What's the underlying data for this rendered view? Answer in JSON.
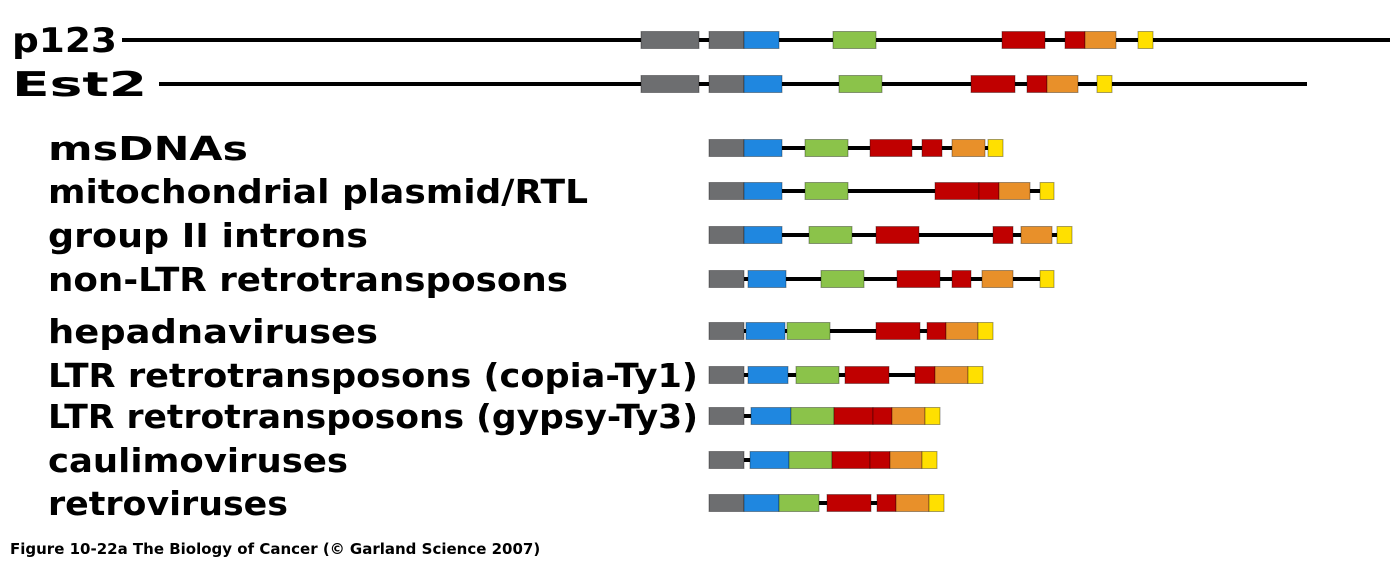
{
  "colors": {
    "backbone": "#000000",
    "gray": "#6d6e70",
    "blue": "#1f87e0",
    "green": "#8bc34a",
    "red": "#c00000",
    "orange": "#e8902a",
    "yellow": "#ffe000"
  },
  "caption": "Figure 10-22a  The Biology of Cancer (© Garland Science 2007)",
  "rows": [
    {
      "label": "p123",
      "line": [
        122,
        1390
      ],
      "domains": [
        {
          "c": "gray",
          "s": 641,
          "e": 699
        },
        {
          "c": "gray",
          "s": 709,
          "e": 744
        },
        {
          "c": "blue",
          "s": 744,
          "e": 779
        },
        {
          "c": "green",
          "s": 833,
          "e": 876
        },
        {
          "c": "red",
          "s": 1002,
          "e": 1045
        },
        {
          "c": "red",
          "s": 1065,
          "e": 1085
        },
        {
          "c": "orange",
          "s": 1085,
          "e": 1116
        },
        {
          "c": "yellow",
          "s": 1138,
          "e": 1153
        }
      ]
    },
    {
      "label": "Est2",
      "line": [
        159,
        1307
      ],
      "domains": [
        {
          "c": "gray",
          "s": 641,
          "e": 699
        },
        {
          "c": "gray",
          "s": 709,
          "e": 744
        },
        {
          "c": "blue",
          "s": 744,
          "e": 782
        },
        {
          "c": "green",
          "s": 839,
          "e": 882
        },
        {
          "c": "red",
          "s": 971,
          "e": 1015
        },
        {
          "c": "red",
          "s": 1027,
          "e": 1047
        },
        {
          "c": "orange",
          "s": 1047,
          "e": 1078
        },
        {
          "c": "yellow",
          "s": 1097,
          "e": 1112
        }
      ]
    },
    {
      "label": "msDNAs",
      "line": [
        709,
        1003
      ],
      "domains": [
        {
          "c": "gray",
          "s": 709,
          "e": 744
        },
        {
          "c": "blue",
          "s": 744,
          "e": 782
        },
        {
          "c": "green",
          "s": 805,
          "e": 848
        },
        {
          "c": "red",
          "s": 870,
          "e": 912
        },
        {
          "c": "red",
          "s": 922,
          "e": 942
        },
        {
          "c": "orange",
          "s": 952,
          "e": 985
        },
        {
          "c": "yellow",
          "s": 988,
          "e": 1003
        }
      ]
    },
    {
      "label": "mitochondrial plasmid/RTL",
      "line": [
        709,
        1054
      ],
      "domains": [
        {
          "c": "gray",
          "s": 709,
          "e": 744
        },
        {
          "c": "blue",
          "s": 744,
          "e": 782
        },
        {
          "c": "green",
          "s": 805,
          "e": 848
        },
        {
          "c": "red",
          "s": 935,
          "e": 979
        },
        {
          "c": "red",
          "s": 979,
          "e": 999
        },
        {
          "c": "orange",
          "s": 999,
          "e": 1030
        },
        {
          "c": "yellow",
          "s": 1040,
          "e": 1054
        }
      ]
    },
    {
      "label": "group II introns",
      "line": [
        709,
        1072
      ],
      "domains": [
        {
          "c": "gray",
          "s": 709,
          "e": 744
        },
        {
          "c": "blue",
          "s": 744,
          "e": 782
        },
        {
          "c": "green",
          "s": 809,
          "e": 852
        },
        {
          "c": "red",
          "s": 876,
          "e": 919
        },
        {
          "c": "red",
          "s": 993,
          "e": 1013
        },
        {
          "c": "orange",
          "s": 1021,
          "e": 1052
        },
        {
          "c": "yellow",
          "s": 1057,
          "e": 1072
        }
      ]
    },
    {
      "label": "non-LTR retrotransposons",
      "line": [
        709,
        1054
      ],
      "domains": [
        {
          "c": "gray",
          "s": 709,
          "e": 744
        },
        {
          "c": "blue",
          "s": 748,
          "e": 786
        },
        {
          "c": "green",
          "s": 821,
          "e": 864
        },
        {
          "c": "red",
          "s": 897,
          "e": 940
        },
        {
          "c": "red",
          "s": 952,
          "e": 971
        },
        {
          "c": "orange",
          "s": 982,
          "e": 1013
        },
        {
          "c": "yellow",
          "s": 1040,
          "e": 1054
        }
      ]
    },
    {
      "label": "hepadnaviruses",
      "line": [
        709,
        993
      ],
      "domains": [
        {
          "c": "gray",
          "s": 709,
          "e": 744
        },
        {
          "c": "blue",
          "s": 746,
          "e": 785
        },
        {
          "c": "green",
          "s": 787,
          "e": 830
        },
        {
          "c": "red",
          "s": 876,
          "e": 920
        },
        {
          "c": "red",
          "s": 927,
          "e": 946
        },
        {
          "c": "orange",
          "s": 946,
          "e": 978
        },
        {
          "c": "yellow",
          "s": 978,
          "e": 993
        }
      ]
    },
    {
      "label": "LTR retrotransposons (copia-Ty1)",
      "line": [
        709,
        983
      ],
      "domains": [
        {
          "c": "gray",
          "s": 709,
          "e": 744
        },
        {
          "c": "blue",
          "s": 748,
          "e": 788
        },
        {
          "c": "green",
          "s": 796,
          "e": 839
        },
        {
          "c": "red",
          "s": 845,
          "e": 889
        },
        {
          "c": "red",
          "s": 915,
          "e": 935
        },
        {
          "c": "orange",
          "s": 935,
          "e": 968
        },
        {
          "c": "yellow",
          "s": 968,
          "e": 983
        }
      ]
    },
    {
      "label": "LTR retrotransposons (gypsy-Ty3)",
      "line": [
        709,
        940
      ],
      "domains": [
        {
          "c": "gray",
          "s": 709,
          "e": 744
        },
        {
          "c": "blue",
          "s": 751,
          "e": 791
        },
        {
          "c": "green",
          "s": 791,
          "e": 834
        },
        {
          "c": "red",
          "s": 834,
          "e": 873
        },
        {
          "c": "red",
          "s": 873,
          "e": 892
        },
        {
          "c": "orange",
          "s": 892,
          "e": 925
        },
        {
          "c": "yellow",
          "s": 925,
          "e": 940
        }
      ]
    },
    {
      "label": "caulimoviruses",
      "line": [
        709,
        937
      ],
      "domains": [
        {
          "c": "gray",
          "s": 709,
          "e": 744
        },
        {
          "c": "blue",
          "s": 750,
          "e": 789
        },
        {
          "c": "green",
          "s": 789,
          "e": 832
        },
        {
          "c": "red",
          "s": 832,
          "e": 870
        },
        {
          "c": "red",
          "s": 870,
          "e": 890
        },
        {
          "c": "orange",
          "s": 890,
          "e": 922
        },
        {
          "c": "yellow",
          "s": 922,
          "e": 937
        }
      ]
    },
    {
      "label": "retroviruses",
      "line": [
        709,
        944
      ],
      "domains": [
        {
          "c": "gray",
          "s": 709,
          "e": 744
        },
        {
          "c": "blue",
          "s": 744,
          "e": 779
        },
        {
          "c": "green",
          "s": 779,
          "e": 819
        },
        {
          "c": "red",
          "s": 827,
          "e": 871
        },
        {
          "c": "red",
          "s": 877,
          "e": 896
        },
        {
          "c": "orange",
          "s": 896,
          "e": 929
        },
        {
          "c": "yellow",
          "s": 929,
          "e": 944
        }
      ]
    }
  ]
}
